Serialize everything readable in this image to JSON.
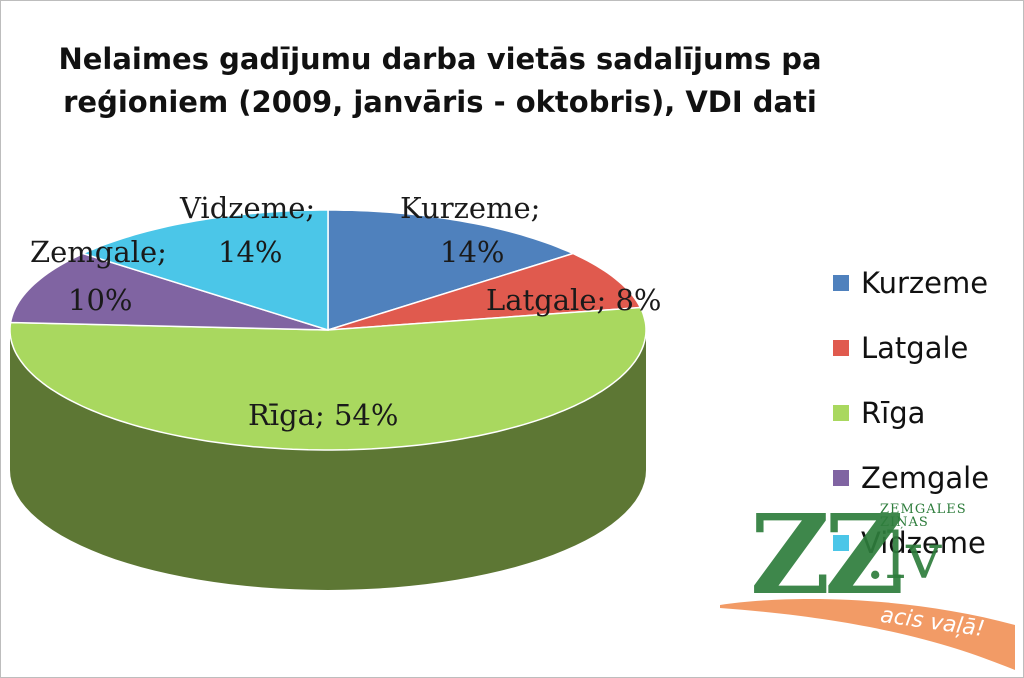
{
  "chart_data": {
    "type": "pie",
    "title": "Nelaimes gadījumu darba vietās sadalījums pa reģioniem (2009, janvāris - oktobris), VDI dati",
    "title_lines": [
      "Nelaimes gadījumu darba vietās sadalījums pa",
      "reģioniem (2009, janvāris - oktobris), VDI dati"
    ],
    "categories": [
      "Kurzeme",
      "Latgale",
      "Rīga",
      "Zemgale",
      "Vidzeme"
    ],
    "values": [
      14,
      8,
      54,
      10,
      14
    ],
    "unit": "%",
    "colors": [
      "#4f81bd",
      "#e05a4e",
      "#a9d85f",
      "#8064a2",
      "#4bc6e8"
    ],
    "data_labels": [
      {
        "lines": [
          "Kurzeme;",
          "14%"
        ]
      },
      {
        "lines": [
          "Latgale; 8%"
        ]
      },
      {
        "lines": [
          "Rīga; 54%"
        ]
      },
      {
        "lines": [
          "Zemgale;",
          "10%"
        ]
      },
      {
        "lines": [
          "Vidzeme;",
          "14%"
        ]
      }
    ],
    "legend_position": "right",
    "style": "3d"
  },
  "watermark": {
    "logo": "ZZ",
    "domain": ".lv",
    "brand": "ZEMGALES ZIŅAS",
    "tagline": "acis vaļā!"
  }
}
